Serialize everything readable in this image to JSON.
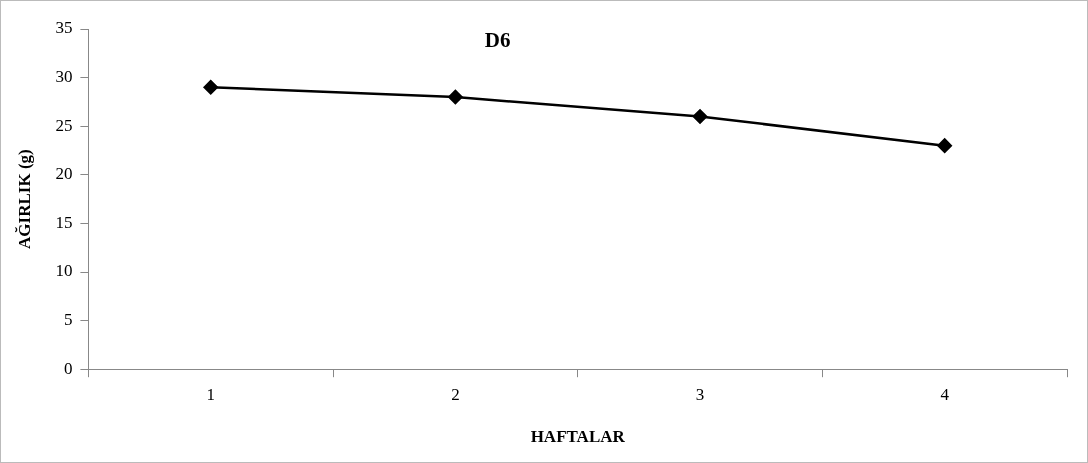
{
  "chart_data": {
    "type": "line",
    "title": "D6",
    "xlabel": "HAFTALAR",
    "ylabel": "AĞIRLIK (g)",
    "categories": [
      "1",
      "2",
      "3",
      "4"
    ],
    "series": [
      {
        "color": "#000000",
        "values": [
          29,
          28,
          26,
          23
        ]
      }
    ],
    "ylim": [
      0,
      35
    ],
    "yticks": [
      0,
      5,
      10,
      15,
      20,
      25,
      30,
      35
    ],
    "grid": false,
    "legend": false,
    "marker": "diamond",
    "line_style": "solid"
  }
}
